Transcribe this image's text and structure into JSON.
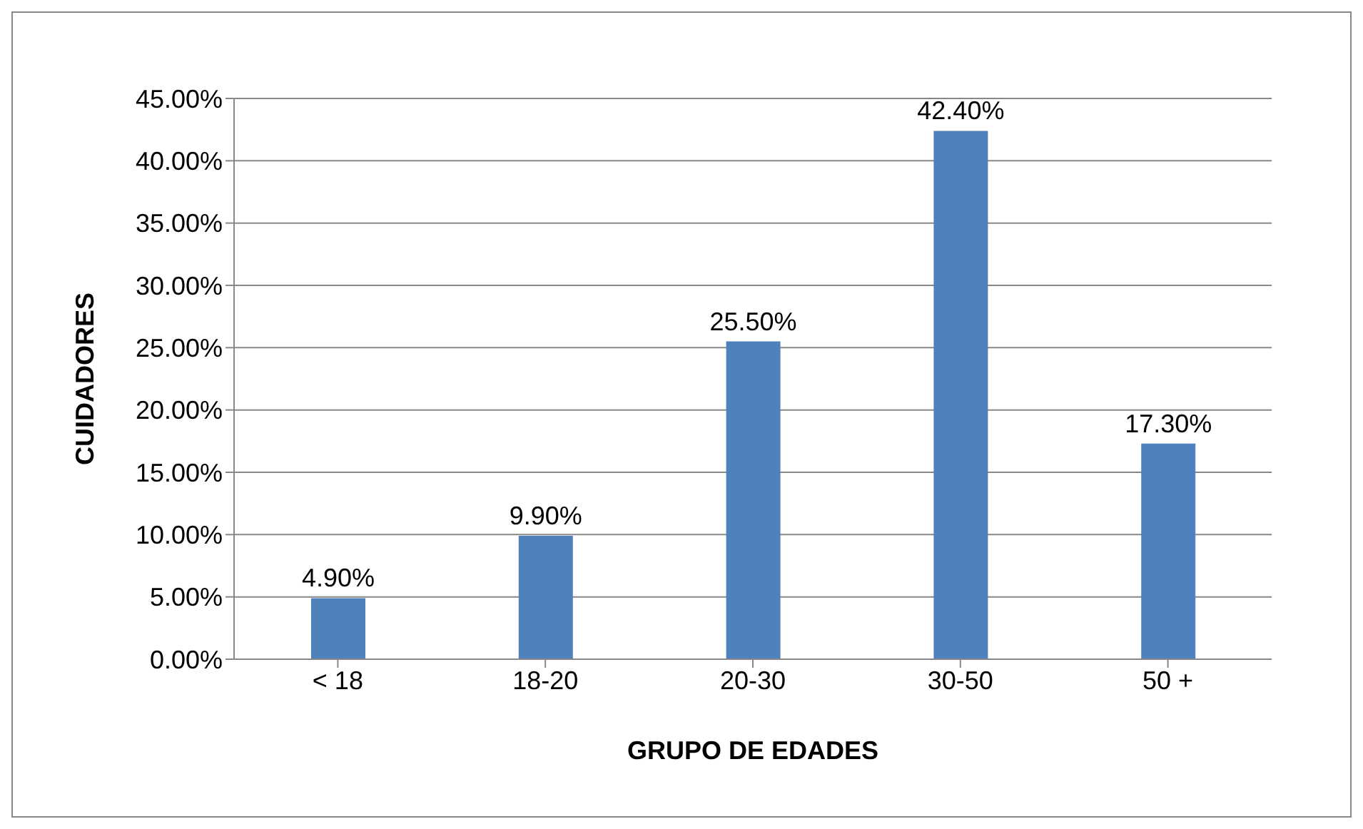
{
  "chart_data": {
    "type": "bar",
    "xlabel": "GRUPO DE EDADES",
    "ylabel": "CUIDADORES",
    "categories": [
      "< 18",
      "18-20",
      "20-30",
      "30-50",
      "50 +"
    ],
    "values": [
      4.9,
      9.9,
      25.5,
      42.4,
      17.3
    ],
    "value_labels": [
      "4.90%",
      "9.90%",
      "25.50%",
      "42.40%",
      "17.30%"
    ],
    "color": "#4f81bd",
    "ylim": [
      0,
      45
    ],
    "yticks": [
      {
        "value": 0,
        "label": "0.00%"
      },
      {
        "value": 5,
        "label": "5.00%"
      },
      {
        "value": 10,
        "label": "10.00%"
      },
      {
        "value": 15,
        "label": "15.00%"
      },
      {
        "value": 20,
        "label": "20.00%"
      },
      {
        "value": 25,
        "label": "25.00%"
      },
      {
        "value": 30,
        "label": "30.00%"
      },
      {
        "value": 35,
        "label": "35.00%"
      },
      {
        "value": 40,
        "label": "40.00%"
      },
      {
        "value": 45,
        "label": "45.00%"
      }
    ],
    "grid": "y",
    "legend": false
  }
}
